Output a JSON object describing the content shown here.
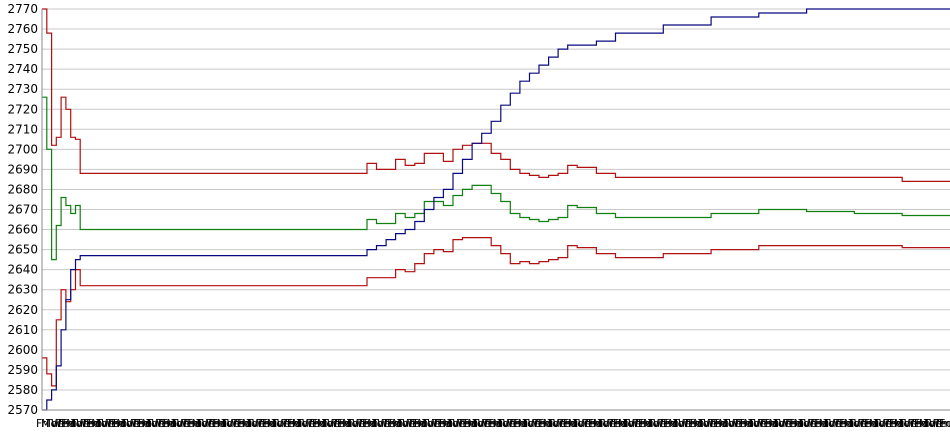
{
  "chart_data": {
    "type": "line",
    "title": "",
    "xlabel": "",
    "ylabel": "",
    "ylim": [
      2570,
      2770
    ],
    "y_ticks": [
      2570,
      2580,
      2590,
      2600,
      2610,
      2620,
      2630,
      2640,
      2650,
      2660,
      2670,
      2680,
      2690,
      2700,
      2710,
      2720,
      2730,
      2740,
      2750,
      2760,
      2770
    ],
    "x_tick_labels": [
      "Fri",
      "Mon",
      "Tue",
      "Wed",
      "Thu",
      "Fri",
      "Mon",
      "Tue",
      "Wed",
      "Thu",
      "Fri",
      "Mon",
      "Tue",
      "Wed",
      "Thu",
      "Fri",
      "Mon",
      "Tue",
      "Wed",
      "Thu",
      "Fri",
      "Mon",
      "Tue",
      "Wed",
      "Thu",
      "Fri",
      "Mon",
      "Tue",
      "Wed",
      "Thu",
      "Fri",
      "Mon",
      "Tue",
      "Wed",
      "Thu",
      "Fri",
      "Mon",
      "Tue",
      "Wed",
      "Thu",
      "Fri",
      "Mon",
      "Tue",
      "Wed",
      "Thu",
      "Fri",
      "Mon",
      "Tue",
      "Wed",
      "Thu",
      "Fri",
      "Mon",
      "Tue",
      "Wed",
      "Thu",
      "Fri",
      "Mon",
      "Tue",
      "Wed",
      "Thu",
      "Fri",
      "Mon",
      "Tue",
      "Wed",
      "Thu",
      "Fri",
      "Mon",
      "Tue",
      "Wed",
      "Thu",
      "Fri",
      "Mon",
      "Tue",
      "Wed",
      "Thu",
      "Fri",
      "Mon",
      "Tue",
      "Wed",
      "Thu",
      "Fri",
      "Mon",
      "Tue",
      "Wed",
      "Thu",
      "Fri",
      "Mon",
      "Tue",
      "Wed",
      "Thu",
      "Fri",
      "Mon",
      "Tue",
      "Wed",
      "Thu",
      "Fri",
      "Mon",
      "Tue",
      "Wed",
      "Thu",
      "Fri",
      "Mon",
      "Tue",
      "Wed",
      "Thu",
      "Fri",
      "Mon",
      "Tue",
      "Wed",
      "Thu",
      "Fri",
      "Mon",
      "Tue",
      "Wed",
      "Thu",
      "Fri",
      "Mon",
      "Tue",
      "Wed",
      "Thu",
      "Fri",
      "Mon",
      "Tue",
      "Wed",
      "Thu",
      "Fri",
      "Mon",
      "Tue",
      "Wed",
      "Thu",
      "Fri",
      "Mon",
      "Tue",
      "Wed",
      "Thu",
      "Fri",
      "Mon",
      "Tue",
      "Wed",
      "Thu",
      "Fri",
      "Mon",
      "Tue",
      "Wed",
      "Thu",
      "Fri",
      "Mon",
      "Tue",
      "Wed",
      "Thu",
      "Fri",
      "Mon",
      "Tue",
      "Wed",
      "Thu",
      "Fri",
      "Mon",
      "Tue",
      "Wed",
      "Thu",
      "Fri",
      "Mon",
      "Tue",
      "Wed",
      "Thu",
      "Fri",
      "Mon",
      "Tue",
      "Wed",
      "Thu",
      "Fri",
      "Mon",
      "Tue",
      "Wed",
      "Thu",
      "Fri",
      "Mon",
      "Tue",
      "Wed",
      "Thu",
      "Fri"
    ],
    "grid": true,
    "legend": "none",
    "x": [
      0,
      5,
      10,
      15,
      20,
      25,
      30,
      35,
      40,
      45,
      50,
      60,
      70,
      80,
      90,
      100,
      120,
      150,
      200,
      250,
      300,
      330,
      340,
      350,
      360,
      370,
      380,
      390,
      400,
      410,
      420,
      430,
      440,
      450,
      460,
      470,
      480,
      490,
      500,
      510,
      520,
      530,
      540,
      550,
      560,
      580,
      600,
      650,
      700,
      750,
      800,
      850,
      900,
      950
    ],
    "series": [
      {
        "name": "",
        "color": "#b01010",
        "values": [
          2770,
          2758,
          2702,
          2706,
          2726,
          2720,
          2706,
          2705,
          2688,
          2688,
          2688,
          2688,
          2688,
          2688,
          2688,
          2688,
          2688,
          2688,
          2688,
          2688,
          2688,
          2688,
          2693,
          2690,
          2690,
          2695,
          2692,
          2693,
          2698,
          2698,
          2694,
          2700,
          2702,
          2703,
          2703,
          2698,
          2695,
          2690,
          2688,
          2687,
          2686,
          2687,
          2688,
          2692,
          2691,
          2688,
          2686,
          2686,
          2686,
          2686,
          2686,
          2686,
          2684,
          2684
        ]
      },
      {
        "name": "",
        "color": "#108010",
        "values": [
          2726,
          2700,
          2645,
          2662,
          2676,
          2672,
          2668,
          2672,
          2660,
          2660,
          2660,
          2660,
          2660,
          2660,
          2660,
          2660,
          2660,
          2660,
          2660,
          2660,
          2660,
          2660,
          2665,
          2663,
          2663,
          2668,
          2666,
          2668,
          2674,
          2674,
          2672,
          2677,
          2680,
          2682,
          2682,
          2678,
          2674,
          2668,
          2666,
          2665,
          2664,
          2665,
          2666,
          2672,
          2671,
          2668,
          2666,
          2666,
          2668,
          2670,
          2669,
          2668,
          2667,
          2667
        ]
      },
      {
        "name": "",
        "color": "#b01010",
        "values": [
          2596,
          2588,
          2582,
          2615,
          2630,
          2624,
          2630,
          2640,
          2632,
          2632,
          2632,
          2632,
          2632,
          2632,
          2632,
          2632,
          2632,
          2632,
          2632,
          2632,
          2632,
          2632,
          2636,
          2636,
          2636,
          2640,
          2639,
          2643,
          2648,
          2650,
          2649,
          2655,
          2656,
          2656,
          2656,
          2652,
          2648,
          2643,
          2644,
          2643,
          2644,
          2645,
          2646,
          2652,
          2651,
          2648,
          2646,
          2648,
          2650,
          2652,
          2652,
          2652,
          2651,
          2651
        ]
      },
      {
        "name": "",
        "color": "#0a0a80",
        "values": [
          2570,
          2575,
          2580,
          2592,
          2610,
          2625,
          2640,
          2645,
          2647,
          2647,
          2647,
          2647,
          2647,
          2647,
          2647,
          2647,
          2647,
          2647,
          2647,
          2647,
          2647,
          2647,
          2650,
          2652,
          2655,
          2658,
          2660,
          2664,
          2670,
          2676,
          2680,
          2688,
          2695,
          2703,
          2708,
          2714,
          2722,
          2728,
          2734,
          2738,
          2742,
          2746,
          2750,
          2752,
          2752,
          2754,
          2758,
          2762,
          2766,
          2768,
          2770,
          2770,
          2770,
          2770
        ]
      }
    ]
  }
}
